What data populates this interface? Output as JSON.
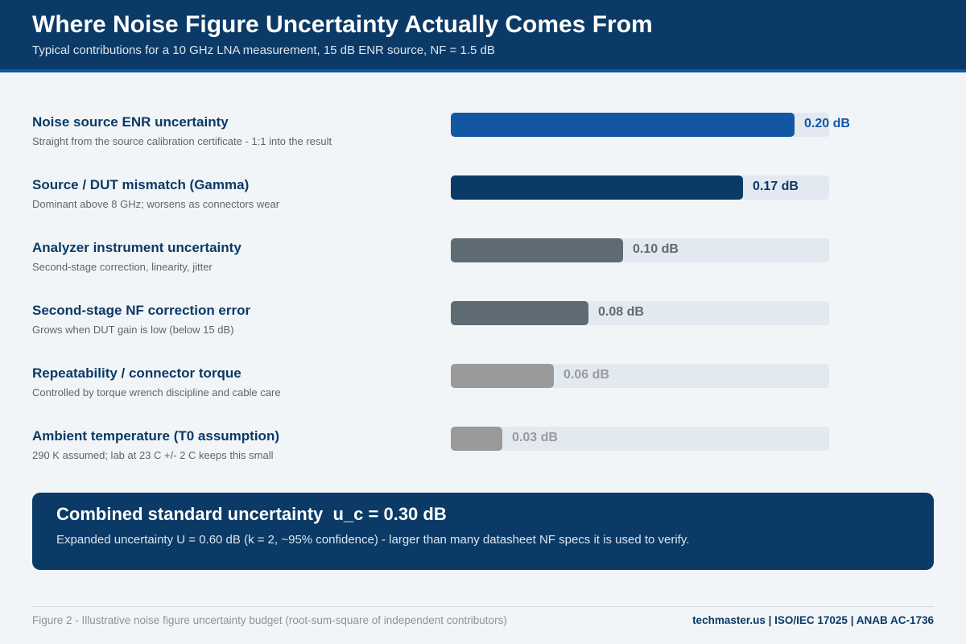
{
  "header": {
    "title": "Where Noise Figure Uncertainty Actually Comes From",
    "subtitle": "Typical contributions for a 10 GHz LNA measurement, 15 dB ENR source, NF = 1.5 dB"
  },
  "chart_data": {
    "type": "bar",
    "orientation": "horizontal",
    "unit": "dB",
    "xlim": [
      0,
      0.22
    ],
    "categories": [
      "Noise source ENR uncertainty",
      "Source / DUT mismatch (Gamma)",
      "Analyzer instrument uncertainty",
      "Second-stage NF correction error",
      "Repeatability / connector torque",
      "Ambient temperature (T0 assumption)"
    ],
    "descriptions": [
      "Straight from the source calibration certificate - 1:1 into the result",
      "Dominant above 8 GHz; worsens as connectors wear",
      "Second-stage correction, linearity, jitter",
      "Grows when DUT gain is low (below 15 dB)",
      "Controlled by torque wrench discipline and cable care",
      "290 K assumed; lab at 23 C +/- 2 C keeps this small"
    ],
    "values": [
      0.2,
      0.17,
      0.1,
      0.08,
      0.06,
      0.03
    ],
    "value_labels": [
      "0.20 dB",
      "0.17 dB",
      "0.10 dB",
      "0.08 dB",
      "0.06 dB",
      "0.03 dB"
    ],
    "bar_colors": [
      "#1257a4",
      "#0b3a66",
      "#5f6b72",
      "#5f6b72",
      "#9a9a9a",
      "#9a9a9a"
    ],
    "label_colors": [
      "#1257a4",
      "#0b3a66",
      "#5f6b72",
      "#5f6b72",
      "#9a9a9a",
      "#9a9a9a"
    ]
  },
  "summary": {
    "title": "Combined standard uncertainty  u_c = 0.30 dB",
    "text": "Expanded uncertainty U = 0.60 dB (k = 2, ~95% confidence) - larger than many datasheet NF specs it is used to verify."
  },
  "footer": {
    "caption": "Figure 2 - Illustrative noise figure uncertainty budget (root-sum-square of independent contributors)",
    "credit": "techmaster.us | ISO/IEC 17025 | ANAB AC-1736"
  },
  "colors": {
    "header_bg": "#0b3a66",
    "accent": "#1257a4",
    "track": "#e3e9f1",
    "page_bg": "#f2f5f8"
  }
}
